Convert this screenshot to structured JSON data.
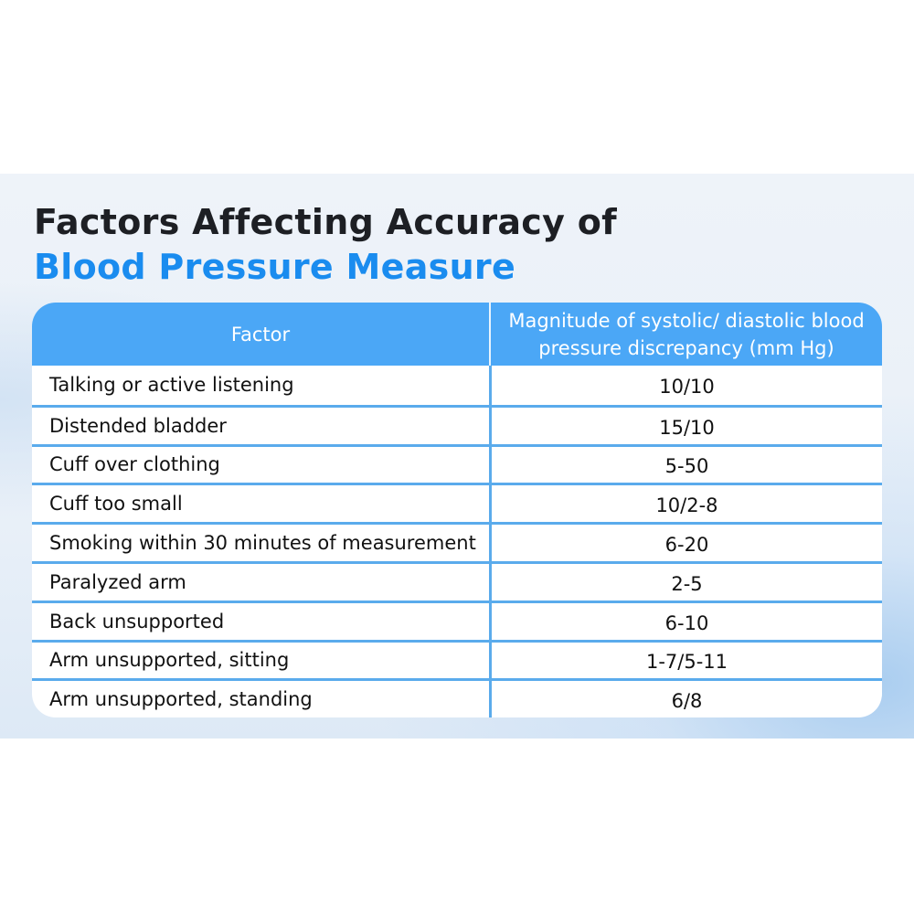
{
  "title": {
    "line1": "Factors Affecting Accuracy of",
    "line2": "Blood Pressure Measure"
  },
  "colors": {
    "accent": "#1a8cef",
    "header": "#4ba7f6",
    "grid": "#5aabec"
  },
  "table": {
    "headers": [
      "Factor",
      "Magnitude of systolic/ diastolic blood pressure discrepancy (mm Hg)"
    ],
    "rows": [
      [
        "Talking or active listening",
        "10/10"
      ],
      [
        "Distended bladder",
        "15/10"
      ],
      [
        "Cuff over clothing",
        "5-50"
      ],
      [
        "Cuff too small",
        "10/2-8"
      ],
      [
        "Smoking within 30 minutes of measurement",
        "6-20"
      ],
      [
        "Paralyzed arm",
        "2-5"
      ],
      [
        "Back unsupported",
        "6-10"
      ],
      [
        "Arm unsupported, sitting",
        "1-7/5-11"
      ],
      [
        "Arm unsupported, standing",
        "6/8"
      ]
    ]
  }
}
